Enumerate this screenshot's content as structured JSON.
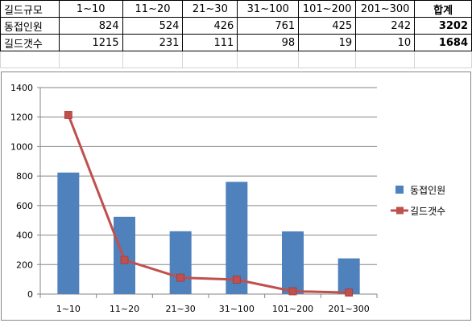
{
  "table": {
    "headers": [
      "길드규모",
      "1~10",
      "11~20",
      "21~30",
      "31~100",
      "101~200",
      "201~300",
      "합계"
    ],
    "rows": [
      {
        "label": "동접인원",
        "values": [
          "824",
          "524",
          "426",
          "761",
          "425",
          "242"
        ],
        "total": "3202"
      },
      {
        "label": "길드갯수",
        "values": [
          "1215",
          "231",
          "111",
          "98",
          "19",
          "10"
        ],
        "total": "1684"
      }
    ]
  },
  "chart_data": {
    "type": "bar",
    "categories": [
      "1~10",
      "11~20",
      "21~30",
      "31~100",
      "101~200",
      "201~300"
    ],
    "series": [
      {
        "name": "동접인원",
        "type": "bar",
        "color": "#4f81bd",
        "values": [
          824,
          524,
          426,
          761,
          425,
          242
        ]
      },
      {
        "name": "길드갯수",
        "type": "line",
        "color": "#c0504d",
        "marker": "square",
        "values": [
          1215,
          231,
          111,
          98,
          19,
          10
        ]
      }
    ],
    "y_ticks": [
      "0",
      "200",
      "400",
      "600",
      "800",
      "1000",
      "1200",
      "1400"
    ],
    "ylim": [
      0,
      1400
    ],
    "grid": true,
    "legend_position": "right"
  }
}
